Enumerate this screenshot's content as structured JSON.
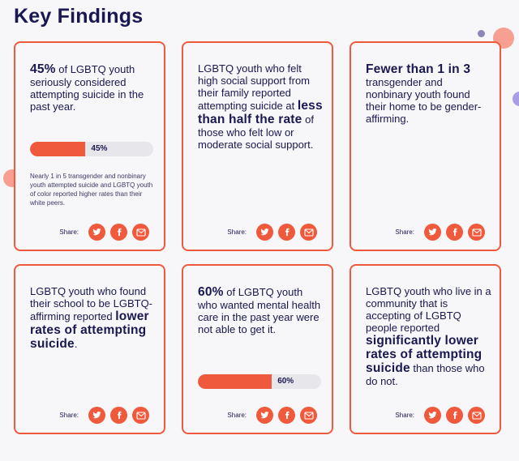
{
  "page": {
    "title": "Key Findings"
  },
  "share_label": "Share:",
  "colors": {
    "accent": "#f05a3c",
    "text": "#1a1851",
    "bar_track": "#e7e6ea",
    "background": "#f7f6f8"
  },
  "icons": [
    "twitter-icon",
    "facebook-icon",
    "mail-icon"
  ],
  "cards": [
    {
      "lead_bold": "45%",
      "lead_rest": " of LGBTQ youth seriously considered attempting suicide in the past year.",
      "progress": {
        "value": 45,
        "label": "45%"
      },
      "note": "Nearly 1 in 5 transgender and nonbinary youth attempted suicide and LGBTQ youth of color reported higher rates than their white peers."
    },
    {
      "text_before": "LGBTQ youth who felt high social support from their family reported attempting suicide at ",
      "highlight": "less than half the rate",
      "text_after": " of those who felt low or moderate social support."
    },
    {
      "highlight": "Fewer than 1 in 3",
      "text_after": " transgender and nonbinary youth found their home to be gender-affirming."
    },
    {
      "text_before": "LGBTQ youth who found their school to be LGBTQ-affirming reported ",
      "highlight": "lower rates of attempting suicide",
      "text_after": "."
    },
    {
      "lead_bold": "60%",
      "lead_rest": " of LGBTQ youth who wanted mental health care in the past year were not able to get it.",
      "progress": {
        "value": 60,
        "label": "60%"
      }
    },
    {
      "text_before": "LGBTQ youth who live in a community that is accepting of LGBTQ people reported ",
      "highlight": "significantly lower rates of attempting suicide",
      "text_after": " than those who do not."
    }
  ]
}
